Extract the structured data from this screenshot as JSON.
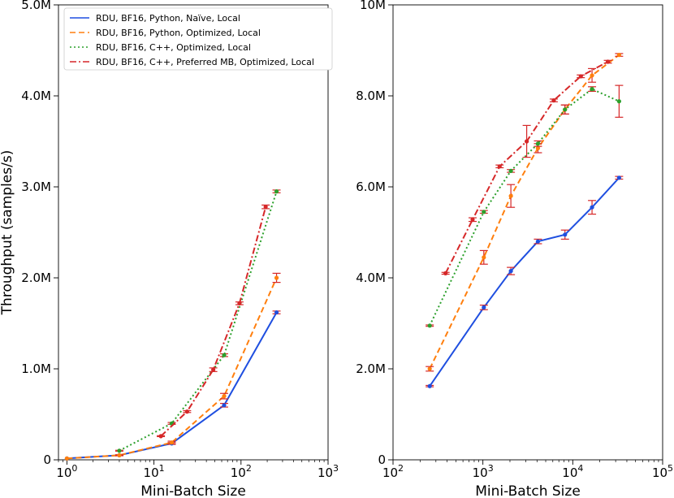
{
  "chart_data": [
    {
      "type": "line",
      "xscale": "log",
      "xlabel": "Mini-Batch Size",
      "ylabel": "Throughput (samples/s)",
      "xlim": [
        0.8,
        1000
      ],
      "ylim": [
        0,
        5000000
      ],
      "xticks": [
        {
          "value": 1,
          "base": "10",
          "exp": "0"
        },
        {
          "value": 10,
          "base": "10",
          "exp": "1"
        },
        {
          "value": 100,
          "base": "10",
          "exp": "2"
        },
        {
          "value": 1000,
          "base": "10",
          "exp": "3"
        }
      ],
      "yticks": [
        {
          "value": 0,
          "label": "0"
        },
        {
          "value": 1000000,
          "label": "1.0M"
        },
        {
          "value": 2000000,
          "label": "2.0M"
        },
        {
          "value": 3000000,
          "label": "3.0M"
        },
        {
          "value": 4000000,
          "label": "4.0M"
        },
        {
          "value": 5000000,
          "label": "5.0M"
        }
      ],
      "legend": {
        "position": "top-left",
        "entries": [
          {
            "label": "RDU, BF16, Python, Naïve, Local",
            "color": "#1f4fe0",
            "style": "solid"
          },
          {
            "label": "RDU, BF16, Python, Optimized, Local",
            "color": "#ff7f0e",
            "style": "dashed"
          },
          {
            "label": "RDU, BF16, C++, Optimized, Local",
            "color": "#2ca02c",
            "style": "dotted"
          },
          {
            "label": "RDU, BF16, C++, Preferred MB, Optimized, Local",
            "color": "#d62728",
            "style": "dashdot"
          }
        ]
      },
      "series": [
        {
          "name": "RDU, BF16, Python, Naïve, Local",
          "color": "#1f4fe0",
          "style": "solid",
          "x": [
            1,
            4,
            16,
            64,
            256
          ],
          "y": [
            15000,
            50000,
            180000,
            600000,
            1620000
          ],
          "err": [
            0,
            5000,
            10000,
            20000,
            15000
          ]
        },
        {
          "name": "RDU, BF16, Python, Optimized, Local",
          "color": "#ff7f0e",
          "style": "dashed",
          "x": [
            1,
            4,
            16,
            64,
            256
          ],
          "y": [
            15000,
            50000,
            190000,
            700000,
            2000000
          ],
          "err": [
            0,
            5000,
            15000,
            30000,
            50000
          ]
        },
        {
          "name": "RDU, BF16, C++, Optimized, Local",
          "color": "#2ca02c",
          "style": "dotted",
          "x": [
            4,
            16,
            64,
            256
          ],
          "y": [
            100000,
            400000,
            1150000,
            2950000
          ],
          "err": [
            5000,
            10000,
            15000,
            15000
          ]
        },
        {
          "name": "RDU, BF16, C++, Preferred MB, Optimized, Local",
          "color": "#d62728",
          "style": "dashdot",
          "x": [
            12,
            24,
            48,
            96,
            192
          ],
          "y": [
            260000,
            530000,
            990000,
            1720000,
            2780000
          ],
          "err": [
            5000,
            10000,
            20000,
            15000,
            20000
          ]
        }
      ]
    },
    {
      "type": "line",
      "xscale": "log",
      "xlabel": "Mini-Batch Size",
      "ylabel": "",
      "xlim": [
        100,
        100000
      ],
      "ylim": [
        0,
        10000000
      ],
      "xticks": [
        {
          "value": 100,
          "base": "10",
          "exp": "2"
        },
        {
          "value": 1000,
          "base": "10",
          "exp": "3"
        },
        {
          "value": 10000,
          "base": "10",
          "exp": "4"
        },
        {
          "value": 100000,
          "base": "10",
          "exp": "5"
        }
      ],
      "yticks": [
        {
          "value": 0,
          "label": "0"
        },
        {
          "value": 2000000,
          "label": "2.0M"
        },
        {
          "value": 4000000,
          "label": "4.0M"
        },
        {
          "value": 6000000,
          "label": "6.0M"
        },
        {
          "value": 8000000,
          "label": "8.0M"
        },
        {
          "value": 10000000,
          "label": "10M"
        }
      ],
      "series": [
        {
          "name": "RDU, BF16, Python, Naïve, Local",
          "color": "#1f4fe0",
          "style": "solid",
          "x": [
            256,
            1024,
            2048,
            4096,
            8192,
            16384,
            32768
          ],
          "y": [
            1620000,
            3350000,
            4150000,
            4800000,
            4950000,
            5550000,
            6200000
          ],
          "err": [
            15000,
            50000,
            80000,
            50000,
            100000,
            150000,
            30000
          ]
        },
        {
          "name": "RDU, BF16, Python, Optimized, Local",
          "color": "#ff7f0e",
          "style": "dashed",
          "x": [
            256,
            1024,
            2048,
            4096,
            8192,
            16384,
            32768
          ],
          "y": [
            2000000,
            4450000,
            5800000,
            6850000,
            7700000,
            8450000,
            8900000
          ],
          "err": [
            50000,
            150000,
            250000,
            100000,
            100000,
            150000,
            30000
          ]
        },
        {
          "name": "RDU, BF16, C++, Optimized, Local",
          "color": "#2ca02c",
          "style": "dotted",
          "x": [
            256,
            1024,
            2048,
            4096,
            8192,
            16384,
            32768
          ],
          "y": [
            2950000,
            5450000,
            6350000,
            6950000,
            7700000,
            8150000,
            7880000
          ],
          "err": [
            15000,
            30000,
            30000,
            60000,
            100000,
            50000,
            350000
          ]
        },
        {
          "name": "RDU, BF16, C++, Preferred MB, Optimized, Local",
          "color": "#d62728",
          "style": "dashdot",
          "x": [
            384,
            768,
            1536,
            3072,
            6144,
            12288,
            24576
          ],
          "y": [
            4100000,
            5280000,
            6450000,
            7000000,
            7900000,
            8430000,
            8750000
          ],
          "err": [
            20000,
            40000,
            30000,
            350000,
            30000,
            30000,
            30000
          ]
        }
      ]
    }
  ]
}
